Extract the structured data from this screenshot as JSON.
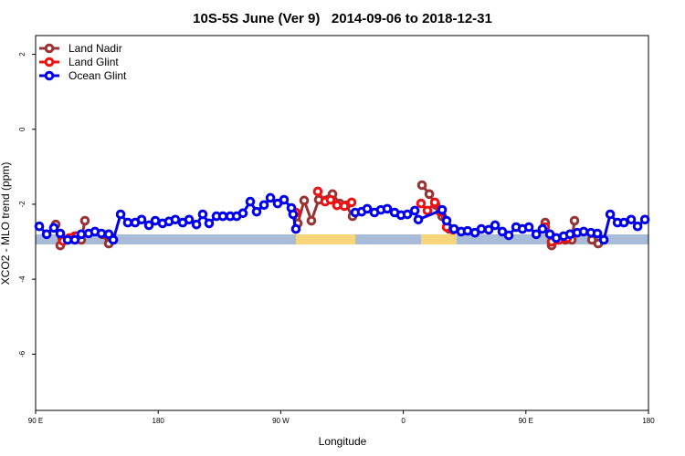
{
  "chart_data": {
    "type": "line",
    "title": "10S-5S June (Ver 9)   2014-09-06 to 2018-12-31",
    "xlabel": "Longitude",
    "ylabel": "XCO2 - MLO trend (ppm)",
    "xlim": [
      -270,
      180
    ],
    "xticks": [
      {
        "value": -270,
        "label": "90 E"
      },
      {
        "value": -180,
        "label": "180"
      },
      {
        "value": -90,
        "label": "90 W"
      },
      0,
      {
        "value": 90,
        "label": "90 E"
      },
      180
    ],
    "ylim": [
      -7.5,
      2.5
    ],
    "yticks": [
      2,
      0,
      -2,
      -4,
      -6
    ],
    "grid": false,
    "legend": "top-left",
    "series": [
      {
        "name": "Land Nadir",
        "color": "#993333",
        "x": [
          -255.2,
          -251.9,
          -246.5,
          -241.2,
          -236.5,
          -233.8,
          -230,
          -221.0,
          -216.3,
          -213.0,
          -200,
          -80.9,
          -77.5,
          -72.8,
          -67.5,
          -62.1,
          -52.0,
          -46.7,
          -42.0,
          -37.3,
          0,
          13.7,
          19.1,
          23.8,
          28.5,
          33.8,
          60,
          104.2,
          108.9,
          113.6,
          119.0,
          123.7,
          125.7,
          130,
          138.5,
          143.1,
          147.2
        ],
        "values": [
          -2.54,
          -3.1,
          -2.95,
          -2.85,
          -2.95,
          -2.44,
          null,
          -2.8,
          -3.05,
          -2.95,
          null,
          -2.24,
          -2.51,
          -1.9,
          -2.44,
          -1.88,
          -1.73,
          -1.98,
          -2.03,
          -2.32,
          null,
          -1.49,
          -1.73,
          -2.02,
          -2.32,
          -2.66,
          null,
          -2.49,
          -3.1,
          -2.95,
          -2.95,
          -2.95,
          -2.44,
          null,
          -2.95,
          -3.05,
          -2.95
        ]
      },
      {
        "name": "Land Glint",
        "color": "#ee1111",
        "x": [
          -249.9,
          -245.2,
          -239.8,
          -150,
          -78.9,
          -70,
          -62.8,
          -57.4,
          -53.4,
          -48.7,
          -43.3,
          -38.0,
          0,
          13.0,
          17.7,
          23.1,
          27.1,
          31.8,
          36.5,
          60,
          104.2,
          108.9,
          114.3,
          120.3
        ],
        "values": [
          -2.98,
          -2.9,
          -2.85,
          null,
          -2.22,
          null,
          -1.66,
          -1.93,
          -1.88,
          -2.03,
          -2.05,
          -1.95,
          null,
          -1.98,
          -2.17,
          -1.95,
          -2.2,
          -2.61,
          -2.68,
          null,
          -2.61,
          -3.0,
          -2.95,
          -2.9
        ]
      },
      {
        "name": "Ocean Glint",
        "color": "#0000ee",
        "x": [
          -267.3,
          -261.9,
          -256.6,
          -251.9,
          -246.5,
          -241.2,
          -236.5,
          -231.1,
          -226.4,
          -221.7,
          -216.3,
          -213.0,
          -207.6,
          -202.3,
          -196.9,
          -192.2,
          -186.8,
          -182.1,
          -176.8,
          -172.1,
          -167.4,
          -162.0,
          -157.3,
          -151.9,
          -147.3,
          -142.6,
          -137.2,
          -132.5,
          -127.1,
          -122.4,
          -117.8,
          -112.4,
          -107.7,
          -102.3,
          -97.6,
          -92.3,
          -87.6,
          -82.2,
          -80.9,
          -78.9,
          -60,
          -35.3,
          -30.6,
          -26.5,
          -21.2,
          -16.5,
          -11.8,
          -6.4,
          -1.7,
          3.0,
          8.4,
          11.0,
          28.5,
          31.8,
          37.2,
          42.5,
          47.2,
          52.6,
          57.3,
          62.7,
          67.4,
          72.7,
          77.4,
          82.8,
          87.5,
          92.2,
          97.6,
          102.2,
          107.6,
          112.3,
          117.7,
          122.4,
          127.7,
          132.4,
          137.8,
          142.5,
          147.2,
          151.9,
          157.3,
          162.0,
          167.3,
          172.0,
          177.4
        ],
        "values": [
          -2.59,
          -2.8,
          -2.63,
          -2.78,
          -2.95,
          -2.95,
          -2.8,
          -2.78,
          -2.73,
          -2.78,
          -2.8,
          -2.95,
          -2.27,
          -2.49,
          -2.49,
          -2.41,
          -2.56,
          -2.44,
          -2.51,
          -2.46,
          -2.41,
          -2.49,
          -2.41,
          -2.54,
          -2.27,
          -2.51,
          -2.32,
          -2.32,
          -2.32,
          -2.32,
          -2.24,
          -1.93,
          -2.2,
          -2.02,
          -1.83,
          -1.98,
          -1.88,
          -2.1,
          -2.27,
          -2.66,
          null,
          -2.22,
          -2.2,
          -2.12,
          -2.22,
          -2.15,
          -2.12,
          -2.22,
          -2.29,
          -2.27,
          -2.17,
          -2.41,
          -2.15,
          -2.44,
          -2.66,
          -2.73,
          -2.71,
          -2.76,
          -2.66,
          -2.68,
          -2.56,
          -2.73,
          -2.83,
          -2.61,
          -2.66,
          -2.61,
          -2.8,
          -2.66,
          -2.8,
          -2.9,
          -2.85,
          -2.8,
          -2.76,
          -2.73,
          -2.76,
          -2.78,
          -2.95,
          -2.27,
          -2.49,
          -2.49,
          -2.41,
          -2.59,
          -2.41
        ]
      }
    ]
  }
}
